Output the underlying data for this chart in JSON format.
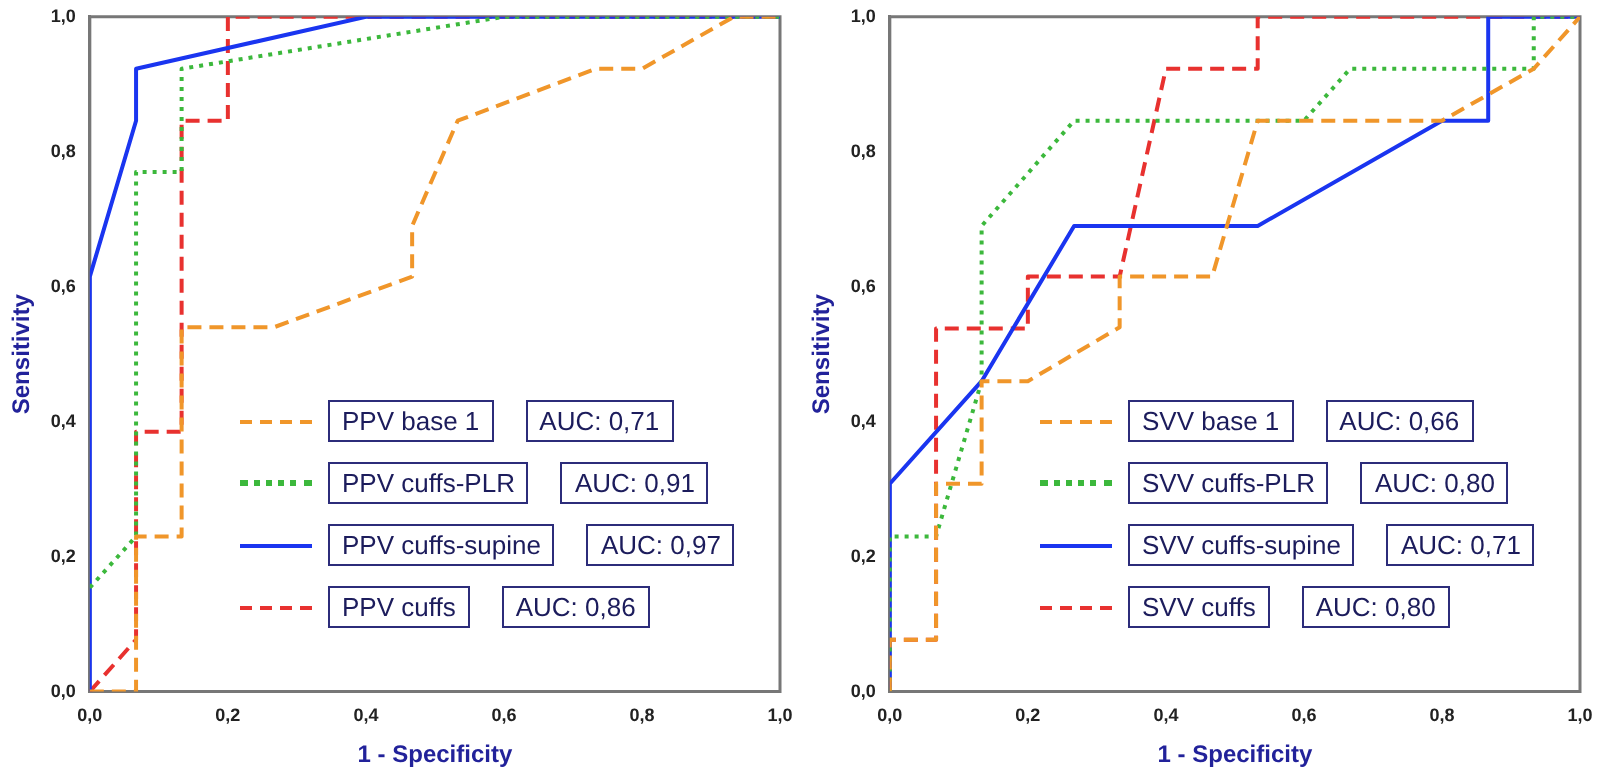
{
  "chart_data": [
    {
      "type": "line",
      "xlabel": "1 - Specificity",
      "ylabel": "Sensitivity",
      "xlim": [
        0,
        1
      ],
      "ylim": [
        0,
        1
      ],
      "xticks": [
        {
          "value": 0,
          "label": "0,0"
        },
        {
          "value": 0.2,
          "label": "0,2"
        },
        {
          "value": 0.4,
          "label": "0,4"
        },
        {
          "value": 0.6,
          "label": "0,6"
        },
        {
          "value": 0.8,
          "label": "0,8"
        },
        {
          "value": 1,
          "label": "1,0"
        }
      ],
      "yticks": [
        {
          "value": 0,
          "label": "0,0"
        },
        {
          "value": 0.2,
          "label": "0,2"
        },
        {
          "value": 0.4,
          "label": "0,4"
        },
        {
          "value": 0.6,
          "label": "0,6"
        },
        {
          "value": 0.8,
          "label": "0,8"
        },
        {
          "value": 1,
          "label": "1,0"
        }
      ],
      "legend": "bottom",
      "annotations": [
        "AUC: 0,71",
        "AUC: 0,91",
        "AUC: 0,97",
        "AUC: 0,86"
      ],
      "series": [
        {
          "name": "PPV base 1",
          "color": "#f0962a",
          "line_style": "dashed",
          "x": [
            0,
            0.067,
            0.067,
            0.133,
            0.133,
            0.267,
            0.467,
            0.467,
            0.533,
            0.733,
            0.8,
            0.933,
            1
          ],
          "values": [
            0,
            0,
            0.23,
            0.23,
            0.54,
            0.54,
            0.615,
            0.69,
            0.846,
            0.923,
            0.923,
            1,
            1
          ]
        },
        {
          "name": "PPV cuffs-PLR",
          "color": "#3cb83c",
          "line_style": "dotted",
          "x": [
            0,
            0.067,
            0.067,
            0.133,
            0.133,
            0.6,
            1
          ],
          "values": [
            0.154,
            0.23,
            0.77,
            0.77,
            0.923,
            1,
            1
          ]
        },
        {
          "name": "PPV cuffs-supine",
          "color": "#1a35f0",
          "line_style": "solid",
          "x": [
            0,
            0,
            0.067,
            0.067,
            0.4,
            1
          ],
          "values": [
            0,
            0.615,
            0.846,
            0.923,
            1,
            1
          ]
        },
        {
          "name": "PPV cuffs",
          "color": "#e8312f",
          "line_style": "dashed",
          "x": [
            0,
            0.067,
            0.067,
            0.133,
            0.133,
            0.2,
            0.2,
            1
          ],
          "values": [
            0,
            0.077,
            0.385,
            0.385,
            0.846,
            0.846,
            1,
            1
          ]
        }
      ]
    },
    {
      "type": "line",
      "xlabel": "1 - Specificity",
      "ylabel": "Sensitivity",
      "xlim": [
        0,
        1
      ],
      "ylim": [
        0,
        1
      ],
      "xticks": [
        {
          "value": 0,
          "label": "0,0"
        },
        {
          "value": 0.2,
          "label": "0,2"
        },
        {
          "value": 0.4,
          "label": "0,4"
        },
        {
          "value": 0.6,
          "label": "0,6"
        },
        {
          "value": 0.8,
          "label": "0,8"
        },
        {
          "value": 1,
          "label": "1,0"
        }
      ],
      "yticks": [
        {
          "value": 0,
          "label": "0,0"
        },
        {
          "value": 0.2,
          "label": "0,2"
        },
        {
          "value": 0.4,
          "label": "0,4"
        },
        {
          "value": 0.6,
          "label": "0,6"
        },
        {
          "value": 0.8,
          "label": "0,8"
        },
        {
          "value": 1,
          "label": "1,0"
        }
      ],
      "legend": "bottom",
      "annotations": [
        "AUC: 0,66",
        "AUC: 0,80",
        "AUC: 0,71",
        "AUC: 0,80"
      ],
      "series": [
        {
          "name": "SVV base 1",
          "color": "#f0962a",
          "line_style": "dashed",
          "x": [
            0,
            0,
            0.067,
            0.067,
            0.133,
            0.133,
            0.2,
            0.333,
            0.333,
            0.467,
            0.533,
            0.8,
            0.933,
            1
          ],
          "values": [
            0,
            0.077,
            0.077,
            0.308,
            0.308,
            0.46,
            0.46,
            0.54,
            0.615,
            0.615,
            0.846,
            0.846,
            0.923,
            1
          ]
        },
        {
          "name": "SVV cuffs-PLR",
          "color": "#3cb83c",
          "line_style": "dotted",
          "x": [
            0,
            0,
            0.067,
            0.133,
            0.133,
            0.267,
            0.6,
            0.667,
            0.933,
            0.933,
            1
          ],
          "values": [
            0,
            0.23,
            0.23,
            0.46,
            0.69,
            0.846,
            0.846,
            0.923,
            0.923,
            1,
            1
          ]
        },
        {
          "name": "SVV cuffs-supine",
          "color": "#1a35f0",
          "line_style": "solid",
          "x": [
            0,
            0,
            0.133,
            0.267,
            0.533,
            0.8,
            0.867,
            0.867,
            1
          ],
          "values": [
            0,
            0.308,
            0.46,
            0.69,
            0.69,
            0.846,
            0.846,
            1,
            1
          ]
        },
        {
          "name": "SVV cuffs",
          "color": "#e8312f",
          "line_style": "dashed",
          "x": [
            0,
            0,
            0.067,
            0.067,
            0.2,
            0.2,
            0.333,
            0.4,
            0.533,
            0.533,
            1
          ],
          "values": [
            0,
            0.077,
            0.077,
            0.538,
            0.538,
            0.615,
            0.615,
            0.923,
            0.923,
            1,
            1
          ]
        }
      ]
    }
  ]
}
